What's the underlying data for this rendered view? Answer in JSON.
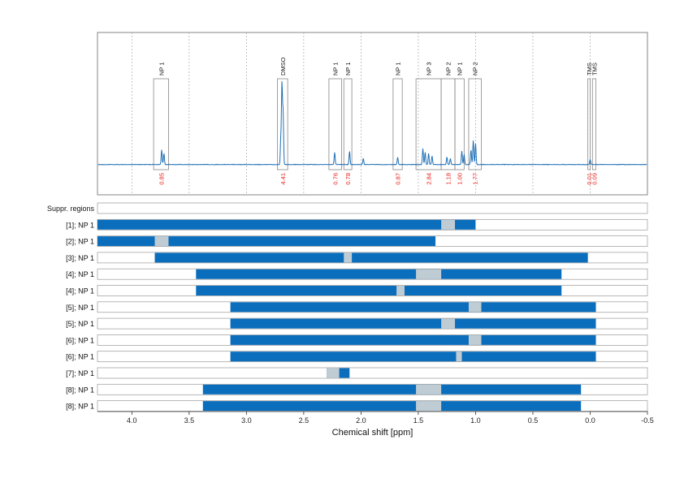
{
  "chart_data": {
    "type": "nmr-spectrum",
    "xlabel": "Chemical shift [ppm]",
    "xlim": [
      4.3,
      -0.5
    ],
    "x_ticks": [
      "4.0",
      "3.5",
      "3.0",
      "2.5",
      "2.0",
      "1.5",
      "1.0",
      "0.5",
      "0.0",
      "-0.5"
    ],
    "x_tick_values": [
      4.0,
      3.5,
      3.0,
      2.5,
      2.0,
      1.5,
      1.0,
      0.5,
      0.0,
      -0.5
    ],
    "grid": "vertical dotted",
    "colors": {
      "spectrum": "#1f6fb5",
      "bar": "#0a6ebd",
      "suppressed": "#c0ccd4",
      "integral": "#e8201a",
      "box": "#888888"
    },
    "spectrum_peaks": [
      {
        "ppm": 3.74,
        "h": 0.12
      },
      {
        "ppm": 3.72,
        "h": 0.09
      },
      {
        "ppm": 2.69,
        "h": 0.65
      },
      {
        "ppm": 2.68,
        "h": 0.42
      },
      {
        "ppm": 2.7,
        "h": 0.2
      },
      {
        "ppm": 2.23,
        "h": 0.1
      },
      {
        "ppm": 2.1,
        "h": 0.11
      },
      {
        "ppm": 1.98,
        "h": 0.05
      },
      {
        "ppm": 1.68,
        "h": 0.06
      },
      {
        "ppm": 1.46,
        "h": 0.13
      },
      {
        "ppm": 1.44,
        "h": 0.1
      },
      {
        "ppm": 1.41,
        "h": 0.09
      },
      {
        "ppm": 1.38,
        "h": 0.07
      },
      {
        "ppm": 1.25,
        "h": 0.06
      },
      {
        "ppm": 1.22,
        "h": 0.05
      },
      {
        "ppm": 1.12,
        "h": 0.11
      },
      {
        "ppm": 1.1,
        "h": 0.08
      },
      {
        "ppm": 1.02,
        "h": 0.2
      },
      {
        "ppm": 1.0,
        "h": 0.17
      },
      {
        "ppm": 1.04,
        "h": 0.12
      },
      {
        "ppm": 0.0,
        "h": 0.04
      }
    ],
    "regions": [
      {
        "label": "NP 1",
        "from": 3.81,
        "to": 3.68,
        "integral": "0.85"
      },
      {
        "label": "DMSO",
        "from": 2.73,
        "to": 2.64,
        "integral": "4.41"
      },
      {
        "label": "NP 1",
        "from": 2.28,
        "to": 2.17,
        "integral": "0.76"
      },
      {
        "label": "NP 1",
        "from": 2.15,
        "to": 2.08,
        "integral": "0.78"
      },
      {
        "label": "NP 1",
        "from": 1.72,
        "to": 1.64,
        "integral": "0.87"
      },
      {
        "label": "NP 3",
        "from": 1.52,
        "to": 1.3,
        "integral": "2.84"
      },
      {
        "label": "NP 2",
        "from": 1.3,
        "to": 1.18,
        "integral": "1.18"
      },
      {
        "label": "NP 1",
        "from": 1.18,
        "to": 1.1,
        "integral": "1.00"
      },
      {
        "label": "NP 2",
        "from": 1.06,
        "to": 0.95,
        "integral": "1.77"
      },
      {
        "label": "TMS",
        "from": 0.02,
        "to": 0.0,
        "integral": "0.01"
      },
      {
        "label": "TMS",
        "from": -0.02,
        "to": -0.05,
        "integral": "0.09"
      }
    ],
    "rows": [
      {
        "label": "Suppr. regions",
        "bar": null,
        "gaps": []
      },
      {
        "label": "[1]; NP 1",
        "bar": [
          4.3,
          1.0
        ],
        "gaps": [
          [
            1.3,
            1.18
          ]
        ]
      },
      {
        "label": "[2]; NP 1",
        "bar": [
          4.3,
          1.35
        ],
        "gaps": [
          [
            3.8,
            3.68
          ]
        ]
      },
      {
        "label": "[3]; NP 1",
        "bar": [
          3.8,
          0.02
        ],
        "gaps": [
          [
            2.15,
            2.08
          ]
        ]
      },
      {
        "label": "[4]; NP 1",
        "bar": [
          3.44,
          0.25
        ],
        "gaps": [
          [
            1.52,
            1.3
          ]
        ]
      },
      {
        "label": "[4]; NP 1",
        "bar": [
          3.44,
          0.25
        ],
        "gaps": [
          [
            1.69,
            1.62
          ]
        ]
      },
      {
        "label": "[5]; NP 1",
        "bar": [
          3.14,
          -0.05
        ],
        "gaps": [
          [
            1.06,
            0.95
          ]
        ]
      },
      {
        "label": "[5]; NP 1",
        "bar": [
          3.14,
          -0.05
        ],
        "gaps": [
          [
            1.3,
            1.18
          ]
        ]
      },
      {
        "label": "[6]; NP 1",
        "bar": [
          3.14,
          -0.05
        ],
        "gaps": [
          [
            1.06,
            0.95
          ]
        ]
      },
      {
        "label": "[6]; NP 1",
        "bar": [
          3.14,
          -0.05
        ],
        "gaps": [
          [
            1.17,
            1.12
          ]
        ]
      },
      {
        "label": "[7]; NP 1",
        "bar": [
          2.3,
          2.1
        ],
        "gaps": [
          [
            2.3,
            2.19
          ]
        ]
      },
      {
        "label": "[8]; NP 1",
        "bar": [
          3.38,
          0.08
        ],
        "gaps": [
          [
            1.52,
            1.3
          ]
        ]
      },
      {
        "label": "[8]; NP 1",
        "bar": [
          3.38,
          0.08
        ],
        "gaps": [
          [
            1.52,
            1.3
          ]
        ]
      }
    ]
  }
}
